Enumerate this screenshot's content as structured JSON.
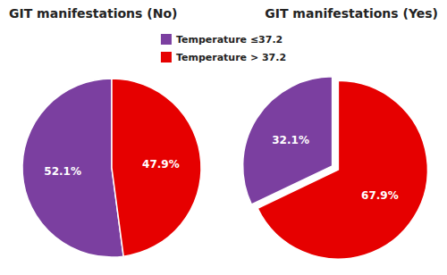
{
  "chart_data": [
    {
      "type": "pie",
      "title": "GIT manifestations (No)",
      "categories": [
        "Temperature ≤37.2",
        "Temperature > 37.2"
      ],
      "values": [
        52.1,
        47.9
      ],
      "value_labels": [
        "52.1%",
        "47.9%"
      ],
      "colors": [
        "#7B3FA0",
        "#E60000"
      ],
      "data_labels": true
    },
    {
      "type": "pie",
      "title": "GIT manifestations (Yes)",
      "categories": [
        "Temperature ≤37.2",
        "Temperature > 37.2"
      ],
      "values": [
        32.1,
        67.9
      ],
      "value_labels": [
        "32.1%",
        "67.9%"
      ],
      "colors": [
        "#7B3FA0",
        "#E60000"
      ],
      "data_labels": true
    }
  ]
}
